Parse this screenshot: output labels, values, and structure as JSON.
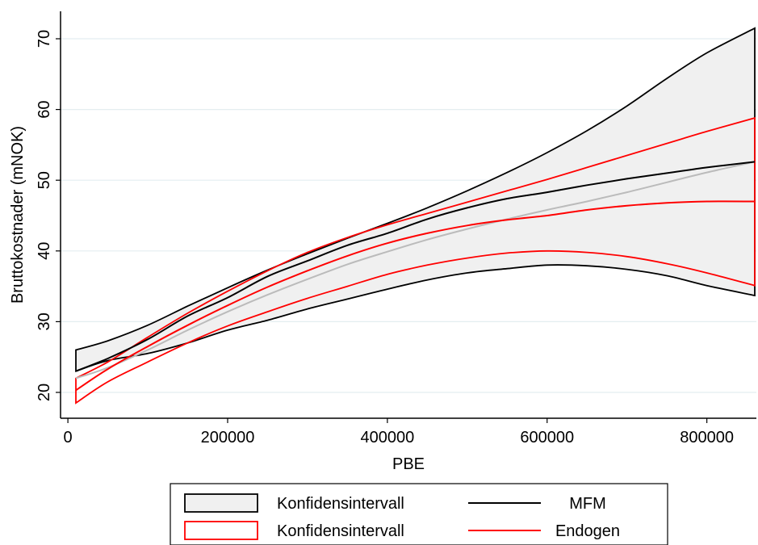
{
  "chart_data": {
    "type": "line",
    "title": "",
    "xlabel": "PBE",
    "ylabel": "Bruttokostnader (mNOK)",
    "xlim": [
      0,
      860000
    ],
    "ylim": [
      17.5,
      73.5
    ],
    "x_ticks": [
      0,
      200000,
      400000,
      600000,
      800000
    ],
    "x_tick_labels": [
      "0",
      "200000",
      "400000",
      "600000",
      "800000"
    ],
    "y_ticks": [
      20,
      30,
      40,
      50,
      60,
      70
    ],
    "y_tick_labels": [
      "20",
      "30",
      "40",
      "50",
      "60",
      "70"
    ],
    "grid": "horizontal",
    "legend_position": "bottom",
    "x": [
      10000,
      50000,
      100000,
      150000,
      200000,
      250000,
      300000,
      350000,
      400000,
      450000,
      500000,
      550000,
      600000,
      650000,
      700000,
      750000,
      800000,
      860000
    ],
    "series": [
      {
        "name": "MFM",
        "role": "line",
        "color": "#000000",
        "values": [
          23.0,
          24.8,
          27.5,
          30.8,
          33.4,
          36.4,
          38.6,
          40.8,
          42.5,
          44.5,
          46.1,
          47.4,
          48.3,
          49.3,
          50.2,
          51.0,
          51.8,
          52.6
        ]
      },
      {
        "name": "Endogen",
        "role": "line",
        "color": "#ff0000",
        "values": [
          20.3,
          23.3,
          26.5,
          29.5,
          32.3,
          34.9,
          37.2,
          39.3,
          41.1,
          42.5,
          43.6,
          44.4,
          45.0,
          45.8,
          46.4,
          46.8,
          47.0,
          47.0
        ]
      },
      {
        "name": "Konfidensintervall",
        "role": "band",
        "color": "#000000",
        "fill": "#f0f0f0",
        "upper": [
          26.0,
          27.3,
          29.5,
          32.2,
          34.8,
          37.3,
          39.6,
          41.8,
          43.9,
          46.1,
          48.5,
          51.1,
          53.9,
          57.0,
          60.5,
          64.4,
          68.0,
          71.5
        ],
        "lower": [
          23.0,
          24.5,
          25.5,
          27.0,
          28.8,
          30.2,
          31.8,
          33.2,
          34.6,
          35.9,
          36.9,
          37.5,
          38.0,
          37.9,
          37.4,
          36.5,
          35.1,
          33.7
        ]
      },
      {
        "name": "Konfidensintervall",
        "role": "band",
        "color": "#ff0000",
        "fill": "none",
        "upper": [
          22.0,
          24.3,
          27.8,
          31.2,
          34.3,
          37.2,
          39.8,
          41.9,
          43.7,
          45.3,
          46.9,
          48.5,
          50.1,
          51.8,
          53.5,
          55.2,
          56.9,
          58.8
        ],
        "lower": [
          18.5,
          21.5,
          24.3,
          27.0,
          29.4,
          31.4,
          33.3,
          35.0,
          36.7,
          38.0,
          39.0,
          39.7,
          40.0,
          39.8,
          39.2,
          38.2,
          36.9,
          35.1
        ]
      }
    ],
    "overall_fit": {
      "color": "#bbbbbb",
      "values": [
        22.0,
        23.5,
        26.0,
        28.8,
        31.4,
        33.8,
        36.0,
        38.1,
        39.9,
        41.6,
        43.1,
        44.5,
        45.8,
        47.0,
        48.3,
        49.7,
        51.1,
        52.6
      ]
    },
    "legend": [
      {
        "label": "Konfidensintervall",
        "kind": "band",
        "stroke": "#000000",
        "fill": "#f0f0f0"
      },
      {
        "label": "MFM",
        "kind": "line",
        "stroke": "#000000"
      },
      {
        "label": "Konfidensintervall",
        "kind": "band",
        "stroke": "#ff0000",
        "fill": "#ffffff"
      },
      {
        "label": "Endogen",
        "kind": "line",
        "stroke": "#ff0000"
      }
    ]
  }
}
